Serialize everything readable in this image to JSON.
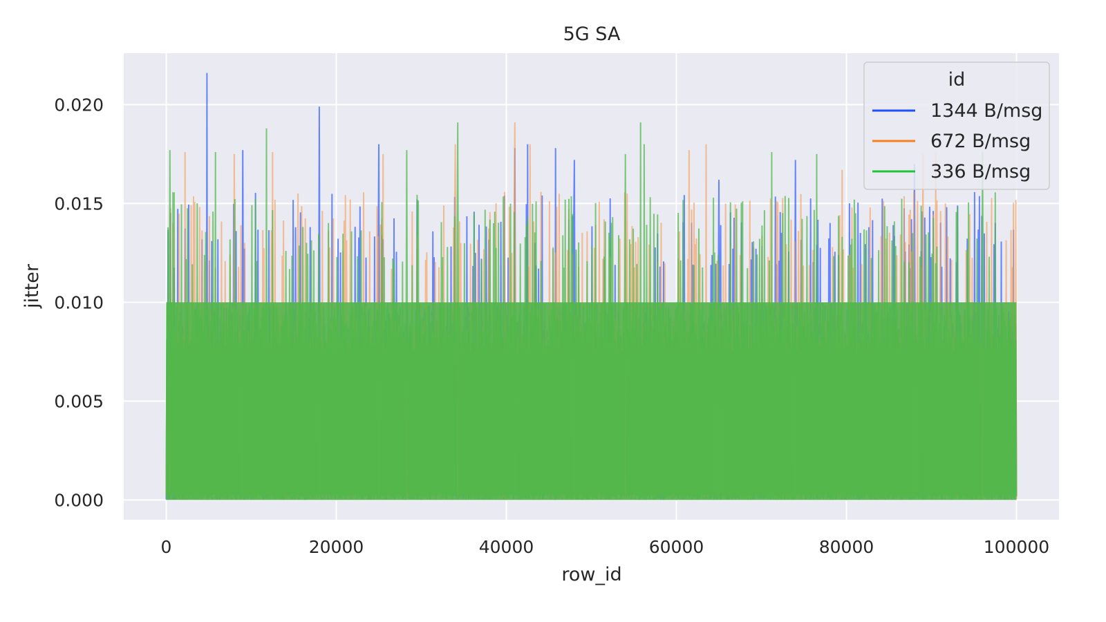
{
  "chart_data": {
    "type": "line",
    "title": "5G SA",
    "xlabel": "row_id",
    "ylabel": "jitter",
    "xlim": [
      -5000,
      105000
    ],
    "ylim": [
      -0.001,
      0.0226
    ],
    "x_ticks": [
      0,
      20000,
      40000,
      60000,
      80000,
      100000
    ],
    "x_tick_labels": [
      "0",
      "20000",
      "40000",
      "60000",
      "80000",
      "100000"
    ],
    "y_ticks": [
      0.0,
      0.005,
      0.01,
      0.015,
      0.02
    ],
    "y_tick_labels": [
      "0.000",
      "0.005",
      "0.010",
      "0.015",
      "0.020"
    ],
    "grid": true,
    "legend": {
      "title": "id",
      "placement": "top-right"
    },
    "x_range": [
      0,
      100000
    ],
    "series": [
      {
        "name": "1344 B/msg",
        "color": "#1f4fff",
        "base_range": [
          0.0,
          0.01
        ],
        "typical_peak": 0.0156,
        "spikes": [
          {
            "x": 4800,
            "y": 0.0216
          },
          {
            "x": 18000,
            "y": 0.0199
          },
          {
            "x": 9000,
            "y": 0.0177
          },
          {
            "x": 25000,
            "y": 0.018
          },
          {
            "x": 41000,
            "y": 0.0178
          },
          {
            "x": 42500,
            "y": 0.018
          },
          {
            "x": 45800,
            "y": 0.0178
          },
          {
            "x": 48000,
            "y": 0.0172
          },
          {
            "x": 65000,
            "y": 0.0162
          },
          {
            "x": 74000,
            "y": 0.0172
          },
          {
            "x": 88000,
            "y": 0.017
          }
        ]
      },
      {
        "name": "672 B/msg",
        "color": "#f5a05a",
        "base_range": [
          0.0,
          0.01
        ],
        "typical_peak": 0.0156,
        "spikes": [
          {
            "x": 2200,
            "y": 0.0176
          },
          {
            "x": 8000,
            "y": 0.0175
          },
          {
            "x": 12500,
            "y": 0.0176
          },
          {
            "x": 25500,
            "y": 0.0175
          },
          {
            "x": 34000,
            "y": 0.018
          },
          {
            "x": 41000,
            "y": 0.0191
          },
          {
            "x": 42800,
            "y": 0.018
          },
          {
            "x": 61500,
            "y": 0.0177
          },
          {
            "x": 63500,
            "y": 0.018
          },
          {
            "x": 79500,
            "y": 0.0167
          },
          {
            "x": 89000,
            "y": 0.0175
          },
          {
            "x": 90500,
            "y": 0.0176
          }
        ]
      },
      {
        "name": "336 B/msg",
        "color": "#4fb84a",
        "base_range": [
          0.0,
          0.01
        ],
        "typical_peak": 0.0156,
        "spikes": [
          {
            "x": 400,
            "y": 0.0177
          },
          {
            "x": 5800,
            "y": 0.0176
          },
          {
            "x": 11800,
            "y": 0.0188
          },
          {
            "x": 28300,
            "y": 0.0177
          },
          {
            "x": 34300,
            "y": 0.0191
          },
          {
            "x": 54000,
            "y": 0.0175
          },
          {
            "x": 55800,
            "y": 0.0191
          },
          {
            "x": 56200,
            "y": 0.018
          },
          {
            "x": 71200,
            "y": 0.0176
          },
          {
            "x": 76500,
            "y": 0.0175
          },
          {
            "x": 96000,
            "y": 0.0176
          }
        ]
      }
    ]
  }
}
